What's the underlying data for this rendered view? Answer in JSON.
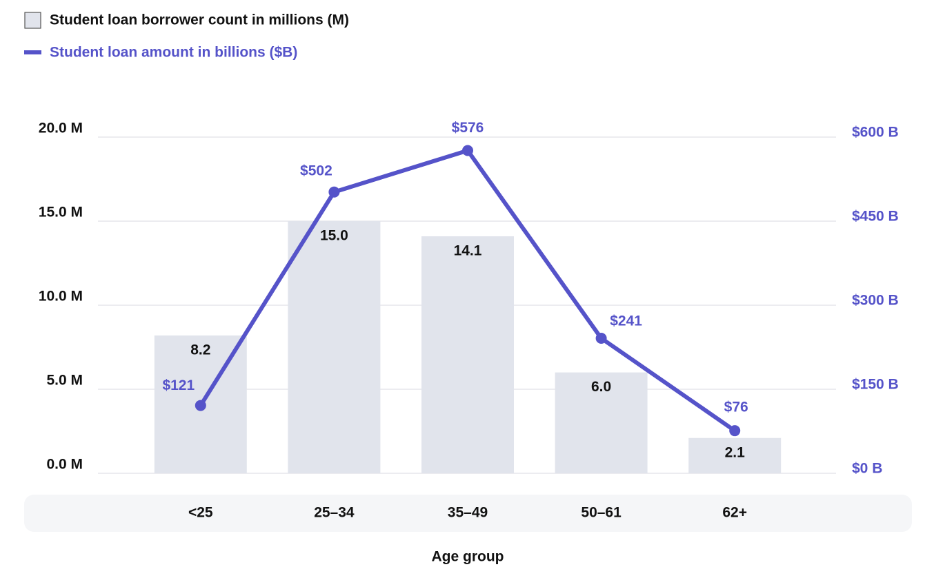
{
  "chart_data": {
    "type": "bar",
    "x_label": "Age group",
    "categories": [
      "<25",
      "25–34",
      "35–49",
      "50–61",
      "62+"
    ],
    "series": [
      {
        "name": "Student loan borrower count in millions (M)",
        "type": "bar",
        "color": "#e1e4ec",
        "axis": "y",
        "values": [
          8.2,
          15.0,
          14.1,
          6.0,
          2.1
        ],
        "value_labels": [
          "8.2",
          "15.0",
          "14.1",
          "6.0",
          "2.1"
        ]
      },
      {
        "name": "Student loan amount in billions ($B)",
        "type": "line",
        "color": "#5553c9",
        "axis": "y2",
        "values": [
          121,
          502,
          576,
          241,
          76
        ],
        "value_labels": [
          "$121",
          "$502",
          "$576",
          "$241",
          "$76"
        ]
      }
    ],
    "ylim": [
      0,
      20
    ],
    "yticks": [
      {
        "value": 0,
        "label": "0.0 M"
      },
      {
        "value": 5,
        "label": "5.0 M"
      },
      {
        "value": 10,
        "label": "10.0 M"
      },
      {
        "value": 15,
        "label": "15.0 M"
      },
      {
        "value": 20,
        "label": "20.0 M"
      }
    ],
    "y2lim": [
      0,
      600
    ],
    "y2ticks": [
      {
        "value": 0,
        "label": "$0 B"
      },
      {
        "value": 150,
        "label": "$150 B"
      },
      {
        "value": 300,
        "label": "$300 B"
      },
      {
        "value": 450,
        "label": "$450 B"
      },
      {
        "value": 600,
        "label": "$600 B"
      }
    ],
    "grid": true,
    "legend": "top-left"
  }
}
